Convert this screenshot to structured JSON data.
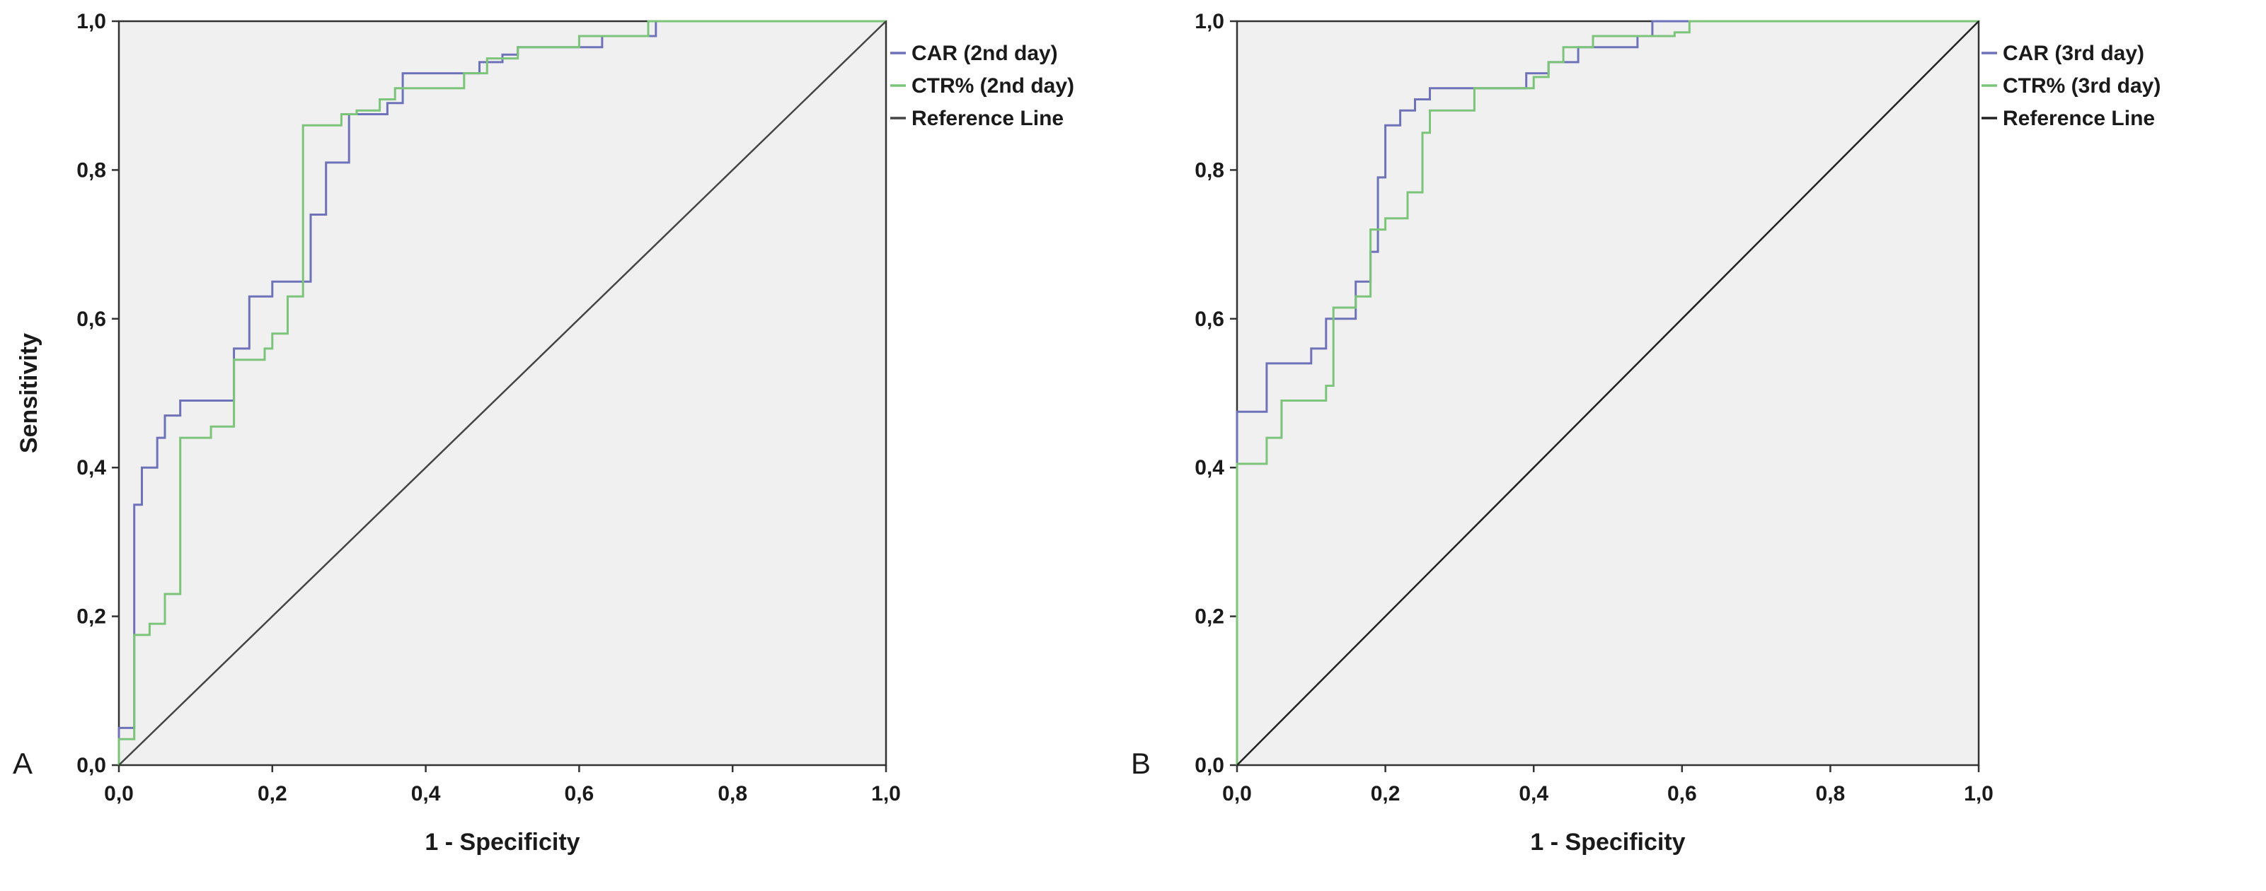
{
  "chart_data": [
    {
      "type": "line",
      "subtype": "roc-step",
      "panel_label": "A",
      "xlabel": "1 - Specificity",
      "ylabel": "Sensitivity",
      "xlim": [
        0,
        1
      ],
      "ylim": [
        0,
        1
      ],
      "ticks": [
        "0,0",
        "0,2",
        "0,4",
        "0,6",
        "0,8",
        "1,0"
      ],
      "grid": false,
      "legend_position": "right",
      "plot_background": "#f0f0f0",
      "series": [
        {
          "name": "CAR (2nd day)",
          "color": "#6e72b8",
          "x": [
            0,
            0,
            0.02,
            0.02,
            0.03,
            0.03,
            0.05,
            0.05,
            0.06,
            0.06,
            0.08,
            0.08,
            0.1,
            0.1,
            0.15,
            0.15,
            0.17,
            0.17,
            0.2,
            0.2,
            0.23,
            0.23,
            0.25,
            0.25,
            0.27,
            0.27,
            0.3,
            0.3,
            0.35,
            0.35,
            0.37,
            0.37,
            0.47,
            0.47,
            0.5,
            0.5,
            0.52,
            0.52,
            0.63,
            0.63,
            0.7,
            0.7,
            1
          ],
          "y": [
            0,
            0.05,
            0.05,
            0.35,
            0.35,
            0.4,
            0.4,
            0.44,
            0.44,
            0.47,
            0.47,
            0.49,
            0.49,
            0.49,
            0.49,
            0.56,
            0.56,
            0.63,
            0.63,
            0.65,
            0.65,
            0.65,
            0.65,
            0.74,
            0.74,
            0.81,
            0.81,
            0.875,
            0.875,
            0.89,
            0.89,
            0.93,
            0.93,
            0.945,
            0.945,
            0.955,
            0.955,
            0.965,
            0.965,
            0.98,
            0.98,
            1,
            1
          ]
        },
        {
          "name": "CTR% (2nd day)",
          "color": "#7cc47a",
          "x": [
            0,
            0,
            0.02,
            0.02,
            0.04,
            0.04,
            0.06,
            0.06,
            0.08,
            0.08,
            0.12,
            0.12,
            0.15,
            0.15,
            0.19,
            0.19,
            0.2,
            0.2,
            0.22,
            0.22,
            0.24,
            0.24,
            0.29,
            0.29,
            0.31,
            0.31,
            0.34,
            0.34,
            0.36,
            0.36,
            0.45,
            0.45,
            0.48,
            0.48,
            0.52,
            0.52,
            0.6,
            0.6,
            0.69,
            0.69,
            1
          ],
          "y": [
            0,
            0.035,
            0.035,
            0.175,
            0.175,
            0.19,
            0.19,
            0.23,
            0.23,
            0.44,
            0.44,
            0.455,
            0.455,
            0.545,
            0.545,
            0.56,
            0.56,
            0.58,
            0.58,
            0.63,
            0.63,
            0.86,
            0.86,
            0.875,
            0.875,
            0.88,
            0.88,
            0.895,
            0.895,
            0.91,
            0.91,
            0.93,
            0.93,
            0.95,
            0.95,
            0.965,
            0.965,
            0.98,
            0.98,
            1,
            1
          ]
        },
        {
          "name": "Reference Line",
          "color": "#444444",
          "x": [
            0,
            1
          ],
          "y": [
            0,
            1
          ]
        }
      ]
    },
    {
      "type": "line",
      "subtype": "roc-step",
      "panel_label": "B",
      "xlabel": "1 - Specificity",
      "ylabel": "",
      "xlim": [
        0,
        1
      ],
      "ylim": [
        0,
        1
      ],
      "ticks": [
        "0,0",
        "0,2",
        "0,4",
        "0,6",
        "0,8",
        "1,0"
      ],
      "grid": false,
      "legend_position": "right",
      "plot_background": "#f0f0f0",
      "series": [
        {
          "name": "CAR (3rd day)",
          "color": "#6e72b8",
          "x": [
            0,
            0,
            0.04,
            0.04,
            0.1,
            0.1,
            0.12,
            0.12,
            0.16,
            0.16,
            0.18,
            0.18,
            0.19,
            0.19,
            0.2,
            0.2,
            0.22,
            0.22,
            0.24,
            0.24,
            0.26,
            0.26,
            0.31,
            0.31,
            0.39,
            0.39,
            0.42,
            0.42,
            0.46,
            0.46,
            0.54,
            0.54,
            0.56,
            0.56,
            1
          ],
          "y": [
            0,
            0.475,
            0.475,
            0.54,
            0.54,
            0.56,
            0.56,
            0.6,
            0.6,
            0.65,
            0.65,
            0.69,
            0.69,
            0.79,
            0.79,
            0.86,
            0.86,
            0.88,
            0.88,
            0.895,
            0.895,
            0.91,
            0.91,
            0.91,
            0.91,
            0.93,
            0.93,
            0.945,
            0.945,
            0.965,
            0.965,
            0.98,
            0.98,
            1,
            1
          ]
        },
        {
          "name": "CTR% (3rd day)",
          "color": "#7cc47a",
          "x": [
            0,
            0,
            0.04,
            0.04,
            0.06,
            0.06,
            0.12,
            0.12,
            0.13,
            0.13,
            0.16,
            0.16,
            0.18,
            0.18,
            0.2,
            0.2,
            0.23,
            0.23,
            0.25,
            0.25,
            0.26,
            0.26,
            0.32,
            0.32,
            0.4,
            0.4,
            0.42,
            0.42,
            0.44,
            0.44,
            0.48,
            0.48,
            0.59,
            0.59,
            0.61,
            0.61,
            1
          ],
          "y": [
            0,
            0.405,
            0.405,
            0.44,
            0.44,
            0.49,
            0.49,
            0.51,
            0.51,
            0.615,
            0.615,
            0.63,
            0.63,
            0.72,
            0.72,
            0.735,
            0.735,
            0.77,
            0.77,
            0.85,
            0.85,
            0.88,
            0.88,
            0.91,
            0.91,
            0.925,
            0.925,
            0.945,
            0.945,
            0.965,
            0.965,
            0.98,
            0.98,
            0.985,
            0.985,
            1,
            1
          ]
        },
        {
          "name": "Reference Line",
          "color": "#222222",
          "x": [
            0,
            1
          ],
          "y": [
            0,
            1
          ]
        }
      ]
    }
  ]
}
